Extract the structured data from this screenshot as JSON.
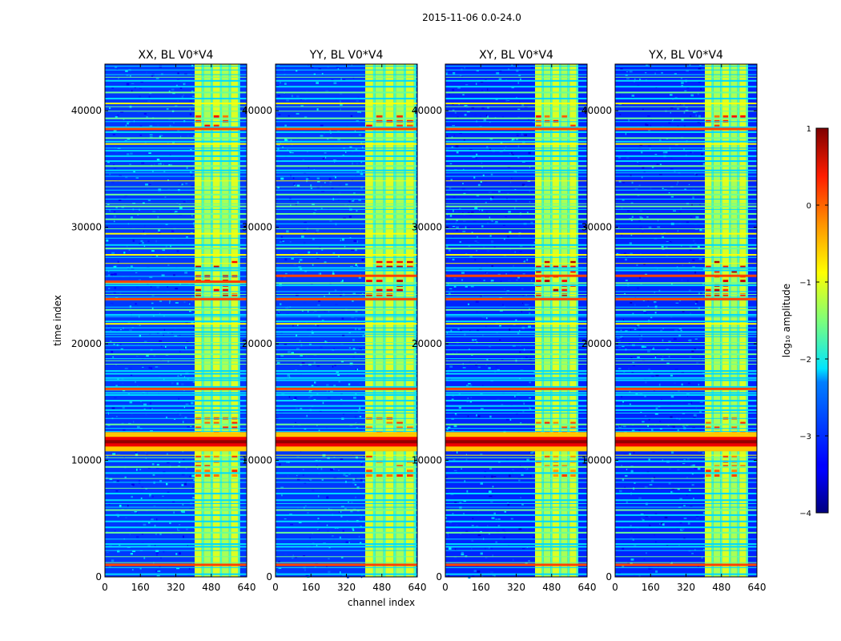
{
  "chart_data": {
    "type": "heatmap",
    "suptitle": "2015-11-06 0.0-24.0",
    "xlabel": "channel index",
    "ylabel": "time index",
    "xlim": [
      0,
      640
    ],
    "ylim": [
      0,
      44000
    ],
    "xticks": [
      0,
      160,
      320,
      480,
      640
    ],
    "yticks": [
      0,
      10000,
      20000,
      30000,
      40000
    ],
    "colorbar": {
      "label": "log₁₀ amplitude",
      "range": [
        -4,
        1
      ],
      "ticks": [
        1,
        0,
        -1,
        -2,
        -3,
        -4
      ],
      "tick_labels": [
        "1",
        "0",
        "−1",
        "−2",
        "−3",
        "−4"
      ],
      "colormap": "jet"
    },
    "panels": [
      {
        "title": "XX, BL V0*V4",
        "background_level": -3.1,
        "rfi_band_channels": [
          405,
          610
        ],
        "strong_rows": [
          1000,
          11600,
          16100,
          23800,
          25300,
          38400
        ]
      },
      {
        "title": "YY, BL V0*V4",
        "background_level": -3.1,
        "rfi_band_channels": [
          405,
          635
        ],
        "strong_rows": [
          1000,
          11600,
          16100,
          23800,
          25800,
          38400
        ]
      },
      {
        "title": "XY, BL V0*V4",
        "background_level": -3.2,
        "rfi_band_channels": [
          405,
          600
        ],
        "strong_rows": [
          1000,
          11600,
          16100,
          23800,
          25800,
          38400
        ]
      },
      {
        "title": "YX, BL V0*V4",
        "background_level": -3.2,
        "rfi_band_channels": [
          405,
          600
        ],
        "strong_rows": [
          1000,
          11600,
          16100,
          23800,
          25800,
          38400
        ]
      }
    ]
  }
}
